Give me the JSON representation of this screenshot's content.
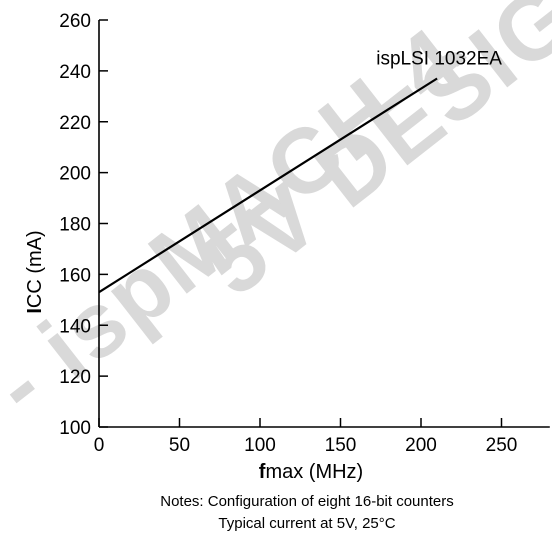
{
  "watermark": {
    "line1": "- ispMACH 4",
    "line2": "5V DESIG",
    "color": "#d9d9d9"
  },
  "chart_data": {
    "type": "line",
    "xlabel": {
      "bold": "f",
      "rest": "max (MHz)"
    },
    "ylabel": {
      "bold": "I",
      "rest": "CC (mA)"
    },
    "xlim": [
      0,
      280
    ],
    "ylim": [
      100,
      260
    ],
    "xticks": [
      0,
      50,
      100,
      150,
      200,
      250
    ],
    "yticks": [
      100,
      120,
      140,
      160,
      180,
      200,
      220,
      240,
      260
    ],
    "grid": false,
    "series": [
      {
        "name": "ispLSI 1032EA",
        "x": [
          0,
          210
        ],
        "y": [
          153,
          237
        ],
        "color": "#000000"
      }
    ],
    "notes": [
      "Notes: Configuration of eight 16-bit counters",
      "Typical current at 5V, 25°C"
    ]
  }
}
